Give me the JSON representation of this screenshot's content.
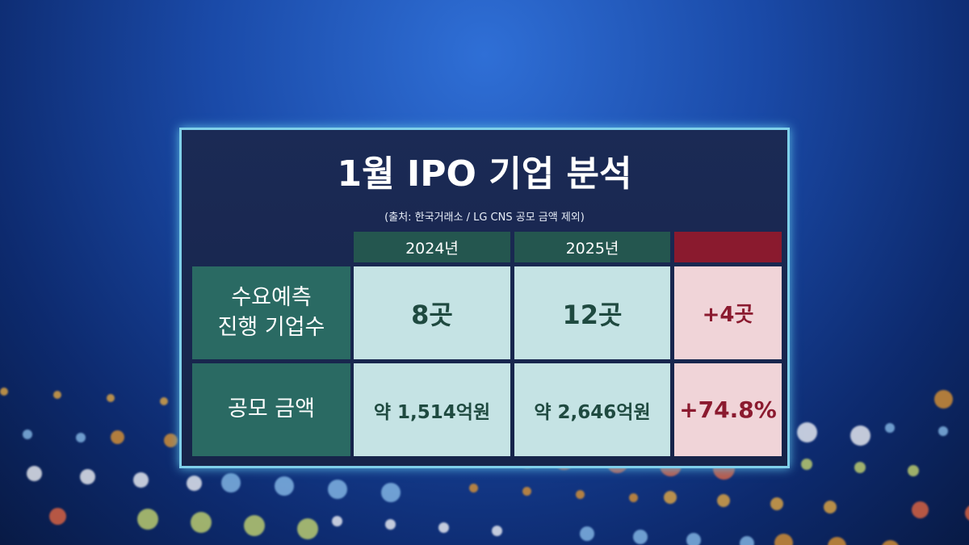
{
  "header": {
    "title": "1월 IPO 기업 분석",
    "source": "(출처: 한국거래소 / LG CNS 공모 금액 제외)"
  },
  "table": {
    "columns": [
      "2024년",
      "2025년"
    ],
    "rows": [
      {
        "label": [
          "수요예측",
          "진행 기업수"
        ],
        "cells": [
          "8곳",
          "12곳",
          "+4곳"
        ]
      },
      {
        "label": [
          "공모 금액"
        ],
        "cells": [
          "약 1,514억원",
          "약 2,646억원",
          "+74.8%"
        ]
      }
    ]
  }
}
